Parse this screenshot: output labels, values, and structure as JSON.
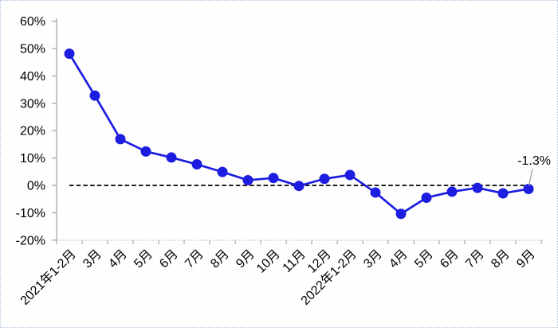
{
  "chart_data": {
    "type": "line",
    "title": "",
    "categories": [
      "2021年1-2月",
      "3月",
      "4月",
      "5月",
      "6月",
      "7月",
      "8月",
      "9月",
      "10月",
      "11月",
      "12月",
      "2022年1-2月",
      "3月",
      "4月",
      "5月",
      "6月",
      "7月",
      "8月",
      "9月"
    ],
    "series": [
      {
        "values": [
          48.1,
          32.8,
          16.9,
          12.4,
          10.2,
          7.7,
          4.9,
          1.9,
          2.7,
          -0.2,
          2.4,
          3.8,
          -2.6,
          -10.4,
          -4.5,
          -2.3,
          -0.9,
          -2.9,
          -1.3
        ]
      }
    ],
    "y_ticks": [
      {
        "label": "60%",
        "value": 60
      },
      {
        "label": "50%",
        "value": 50
      },
      {
        "label": "40%",
        "value": 40
      },
      {
        "label": "30%",
        "value": 30
      },
      {
        "label": "20%",
        "value": 20
      },
      {
        "label": "10%",
        "value": 10
      },
      {
        "label": "0%",
        "value": 0
      },
      {
        "label": "-10%",
        "value": -10
      },
      {
        "label": "-20%",
        "value": -20
      }
    ],
    "ylim": [
      -20,
      60
    ],
    "xlabel": "",
    "ylabel": "",
    "grid": false,
    "legend_position": "none",
    "zero_reference_line": {
      "value": 0,
      "style": "dashed",
      "color": "#000000"
    },
    "annotation": {
      "text": "-1.3%",
      "target_index": 18
    }
  },
  "colors": {
    "line": "#1d1de0",
    "marker": "#1d1de0",
    "axis": "#a0a0a0",
    "baseline": "#b9cfe8",
    "zero_line": "#000000",
    "leader_line": "#a8a8a8",
    "text": "#000000",
    "background": "#fefefe",
    "frame_border": "#aec3de"
  }
}
